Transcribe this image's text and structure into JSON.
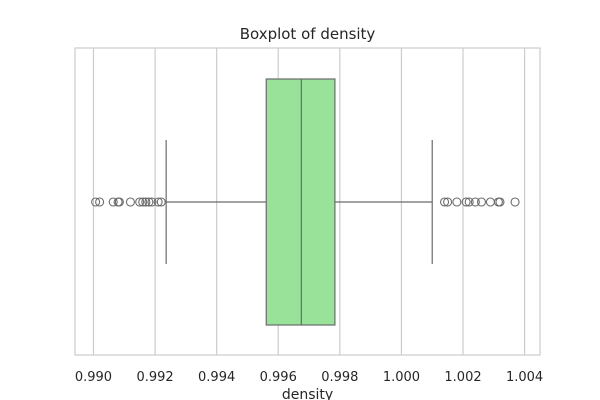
{
  "chart_data": {
    "type": "boxplot",
    "title": "Boxplot of density",
    "xlabel": "density",
    "ylabel": "",
    "xlim": [
      0.9894,
      1.0045
    ],
    "xticks": [
      0.99,
      0.992,
      0.994,
      0.996,
      0.998,
      1.0,
      1.002,
      1.004
    ],
    "xtick_labels": [
      "0.990",
      "0.992",
      "0.994",
      "0.996",
      "0.998",
      "1.000",
      "1.002",
      "1.004"
    ],
    "grid": true,
    "box": {
      "q1": 0.99561,
      "median": 0.99675,
      "q3": 0.99784,
      "whisker_low": 0.99236,
      "whisker_high": 1.001
    },
    "outliers": [
      0.99007,
      0.9902,
      0.99064,
      0.9908,
      0.99084,
      0.9912,
      0.9915,
      0.9916,
      0.9917,
      0.9918,
      0.9919,
      0.9921,
      0.9922,
      1.0014,
      1.0015,
      1.0018,
      1.0021,
      1.0022,
      1.0024,
      1.0026,
      1.00289,
      1.00315,
      1.0032,
      1.00369
    ],
    "colors": {
      "box_fill": "#98e29a",
      "line": "#6b6b6b",
      "grid": "#cccccc",
      "frame": "#cccccc"
    }
  }
}
